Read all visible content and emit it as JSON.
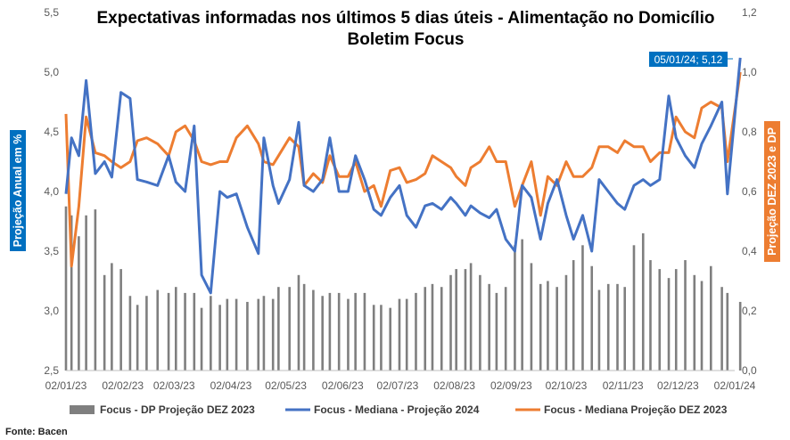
{
  "chart_data": {
    "type": "bar+line",
    "title": "Expectativas informadas nos últimos 5 dias úteis - Alimentação no Domicílio",
    "subtitle": "Boletim Focus",
    "ylabel_left": "Projeção Anual em %",
    "ylabel_right": "Projeção DEZ 2023 e DP",
    "ylim_left": [
      2.5,
      5.5
    ],
    "ylim_right": [
      0.0,
      1.2
    ],
    "yticks_left": [
      "2,5",
      "3,0",
      "3,5",
      "4,0",
      "4,5",
      "5,0",
      "5,5"
    ],
    "yticks_right": [
      "0,0",
      "0,2",
      "0,4",
      "0,6",
      "0,8",
      "1,0",
      "1,2"
    ],
    "x_ticks": [
      "02/01/23",
      "02/02/23",
      "02/03/23",
      "02/04/23",
      "02/05/23",
      "02/06/23",
      "02/07/23",
      "02/08/23",
      "02/09/23",
      "02/10/23",
      "02/11/23",
      "02/12/23",
      "02/01/24"
    ],
    "annotation": "05/01/24; 5,12",
    "source": "Fonte: Bacen",
    "colors": {
      "bars": "#7f7f7f",
      "median_2024": "#4472c4",
      "median_dez2023": "#ed7d31",
      "callout": "#0070c0"
    },
    "series": [
      {
        "name": "Focus - DP Projeção DEZ 2023",
        "axis": "right",
        "kind": "bar",
        "x": [
          "02/01/23",
          "05/01/23",
          "09/01/23",
          "13/01/23",
          "18/01/23",
          "23/01/23",
          "27/01/23",
          "01/02/23",
          "06/02/23",
          "10/02/23",
          "15/02/23",
          "21/02/23",
          "27/02/23",
          "03/03/23",
          "08/03/23",
          "13/03/23",
          "17/03/23",
          "22/03/23",
          "27/03/23",
          "31/03/23",
          "05/04/23",
          "11/04/23",
          "17/04/23",
          "20/04/23",
          "25/04/23",
          "28/04/23",
          "04/05/23",
          "09/05/23",
          "12/05/23",
          "17/05/23",
          "22/05/23",
          "26/05/23",
          "31/05/23",
          "05/06/23",
          "09/06/23",
          "14/06/23",
          "19/06/23",
          "23/06/23",
          "28/06/23",
          "03/07/23",
          "07/07/23",
          "12/07/23",
          "17/07/23",
          "21/07/23",
          "26/07/23",
          "31/07/23",
          "03/08/23",
          "08/08/23",
          "11/08/23",
          "16/08/23",
          "21/08/23",
          "25/08/23",
          "30/08/23",
          "04/09/23",
          "08/09/23",
          "13/09/23",
          "18/09/23",
          "22/09/23",
          "27/09/23",
          "02/10/23",
          "06/10/23",
          "11/10/23",
          "16/10/23",
          "20/10/23",
          "25/10/23",
          "30/10/23",
          "03/11/23",
          "08/11/23",
          "13/11/23",
          "17/11/23",
          "22/11/23",
          "27/11/23",
          "01/12/23",
          "06/12/23",
          "11/12/23",
          "15/12/23",
          "20/12/23",
          "26/12/23",
          "29/12/23",
          "05/01/24"
        ],
        "values": [
          0.55,
          0.52,
          0.45,
          0.52,
          0.54,
          0.32,
          0.36,
          0.34,
          0.25,
          0.22,
          0.25,
          0.27,
          0.26,
          0.28,
          0.26,
          0.26,
          0.21,
          0.25,
          0.22,
          0.24,
          0.24,
          0.23,
          0.24,
          0.25,
          0.24,
          0.28,
          0.28,
          0.32,
          0.29,
          0.27,
          0.25,
          0.26,
          0.26,
          0.24,
          0.26,
          0.26,
          0.22,
          0.22,
          0.21,
          0.24,
          0.24,
          0.26,
          0.28,
          0.29,
          0.28,
          0.32,
          0.34,
          0.34,
          0.36,
          0.32,
          0.29,
          0.26,
          0.28,
          0.42,
          0.44,
          0.36,
          0.29,
          0.3,
          0.28,
          0.32,
          0.37,
          0.42,
          0.35,
          0.27,
          0.29,
          0.29,
          0.28,
          0.42,
          0.46,
          0.37,
          0.34,
          0.31,
          0.34,
          0.37,
          0.32,
          0.3,
          0.35,
          0.28,
          0.26,
          0.23
        ]
      },
      {
        "name": "Focus -  Mediana - Projeção 2024",
        "axis": "left",
        "kind": "line",
        "x": [
          "02/01/23",
          "05/01/23",
          "09/01/23",
          "13/01/23",
          "18/01/23",
          "23/01/23",
          "27/01/23",
          "01/02/23",
          "06/02/23",
          "10/02/23",
          "15/02/23",
          "21/02/23",
          "27/02/23",
          "03/03/23",
          "08/03/23",
          "13/03/23",
          "17/03/23",
          "22/03/23",
          "27/03/23",
          "31/03/23",
          "05/04/23",
          "11/04/23",
          "17/04/23",
          "20/04/23",
          "25/04/23",
          "28/04/23",
          "04/05/23",
          "09/05/23",
          "12/05/23",
          "17/05/23",
          "22/05/23",
          "26/05/23",
          "31/05/23",
          "05/06/23",
          "09/06/23",
          "14/06/23",
          "19/06/23",
          "23/06/23",
          "28/06/23",
          "03/07/23",
          "07/07/23",
          "12/07/23",
          "17/07/23",
          "21/07/23",
          "26/07/23",
          "31/07/23",
          "03/08/23",
          "08/08/23",
          "11/08/23",
          "16/08/23",
          "21/08/23",
          "25/08/23",
          "30/08/23",
          "04/09/23",
          "08/09/23",
          "13/09/23",
          "18/09/23",
          "22/09/23",
          "27/09/23",
          "02/10/23",
          "06/10/23",
          "11/10/23",
          "16/10/23",
          "20/10/23",
          "25/10/23",
          "30/10/23",
          "03/11/23",
          "08/11/23",
          "13/11/23",
          "17/11/23",
          "22/11/23",
          "27/11/23",
          "01/12/23",
          "06/12/23",
          "11/12/23",
          "15/12/23",
          "20/12/23",
          "26/12/23",
          "29/12/23",
          "05/01/24"
        ],
        "values": [
          3.98,
          4.45,
          4.3,
          4.93,
          4.15,
          4.25,
          4.12,
          4.83,
          4.78,
          4.1,
          4.08,
          4.05,
          4.3,
          4.08,
          4.0,
          4.55,
          3.3,
          3.15,
          4.0,
          3.95,
          3.98,
          3.7,
          3.48,
          4.45,
          4.05,
          3.9,
          4.1,
          4.58,
          4.05,
          4.0,
          4.1,
          4.45,
          4.0,
          4.0,
          4.3,
          4.1,
          3.85,
          3.8,
          3.95,
          4.05,
          3.8,
          3.7,
          3.88,
          3.9,
          3.85,
          3.95,
          3.9,
          3.8,
          3.88,
          3.82,
          3.78,
          3.85,
          3.6,
          3.5,
          4.05,
          3.95,
          3.6,
          3.9,
          4.1,
          3.8,
          3.6,
          3.8,
          3.5,
          4.1,
          4.0,
          3.9,
          3.85,
          4.05,
          4.1,
          4.05,
          4.1,
          4.8,
          4.45,
          4.3,
          4.2,
          4.4,
          4.55,
          4.75,
          3.98,
          5.12
        ]
      },
      {
        "name": "Focus - Mediana Projeção DEZ 2023",
        "axis": "right",
        "kind": "line",
        "x": [
          "02/01/23",
          "05/01/23",
          "09/01/23",
          "13/01/23",
          "18/01/23",
          "23/01/23",
          "27/01/23",
          "01/02/23",
          "06/02/23",
          "10/02/23",
          "15/02/23",
          "21/02/23",
          "27/02/23",
          "03/03/23",
          "08/03/23",
          "13/03/23",
          "17/03/23",
          "22/03/23",
          "27/03/23",
          "31/03/23",
          "05/04/23",
          "11/04/23",
          "17/04/23",
          "20/04/23",
          "25/04/23",
          "28/04/23",
          "04/05/23",
          "09/05/23",
          "12/05/23",
          "17/05/23",
          "22/05/23",
          "26/05/23",
          "31/05/23",
          "05/06/23",
          "09/06/23",
          "14/06/23",
          "19/06/23",
          "23/06/23",
          "28/06/23",
          "03/07/23",
          "07/07/23",
          "12/07/23",
          "17/07/23",
          "21/07/23",
          "26/07/23",
          "31/07/23",
          "03/08/23",
          "08/08/23",
          "11/08/23",
          "16/08/23",
          "21/08/23",
          "25/08/23",
          "30/08/23",
          "04/09/23",
          "08/09/23",
          "13/09/23",
          "18/09/23",
          "22/09/23",
          "27/09/23",
          "02/10/23",
          "06/10/23",
          "11/10/23",
          "16/10/23",
          "20/10/23",
          "25/10/23",
          "30/10/23",
          "03/11/23",
          "08/11/23",
          "13/11/23",
          "17/11/23",
          "22/11/23",
          "27/11/23",
          "01/12/23",
          "06/12/23",
          "11/12/23",
          "15/12/23",
          "20/12/23",
          "26/12/23",
          "29/12/23",
          "05/01/24"
        ],
        "values": [
          0.86,
          0.35,
          0.55,
          0.85,
          0.73,
          0.72,
          0.7,
          0.68,
          0.7,
          0.77,
          0.78,
          0.76,
          0.72,
          0.8,
          0.82,
          0.77,
          0.7,
          0.69,
          0.7,
          0.7,
          0.78,
          0.82,
          0.76,
          0.7,
          0.69,
          0.72,
          0.78,
          0.75,
          0.62,
          0.66,
          0.63,
          0.72,
          0.65,
          0.65,
          0.7,
          0.6,
          0.62,
          0.55,
          0.67,
          0.68,
          0.63,
          0.64,
          0.66,
          0.72,
          0.7,
          0.68,
          0.65,
          0.62,
          0.68,
          0.7,
          0.75,
          0.7,
          0.7,
          0.55,
          0.62,
          0.7,
          0.52,
          0.65,
          0.62,
          0.7,
          0.65,
          0.65,
          0.68,
          0.75,
          0.75,
          0.73,
          0.77,
          0.75,
          0.75,
          0.7,
          0.73,
          0.73,
          0.85,
          0.8,
          0.78,
          0.88,
          0.9,
          0.88,
          0.7,
          1.0
        ]
      }
    ]
  }
}
